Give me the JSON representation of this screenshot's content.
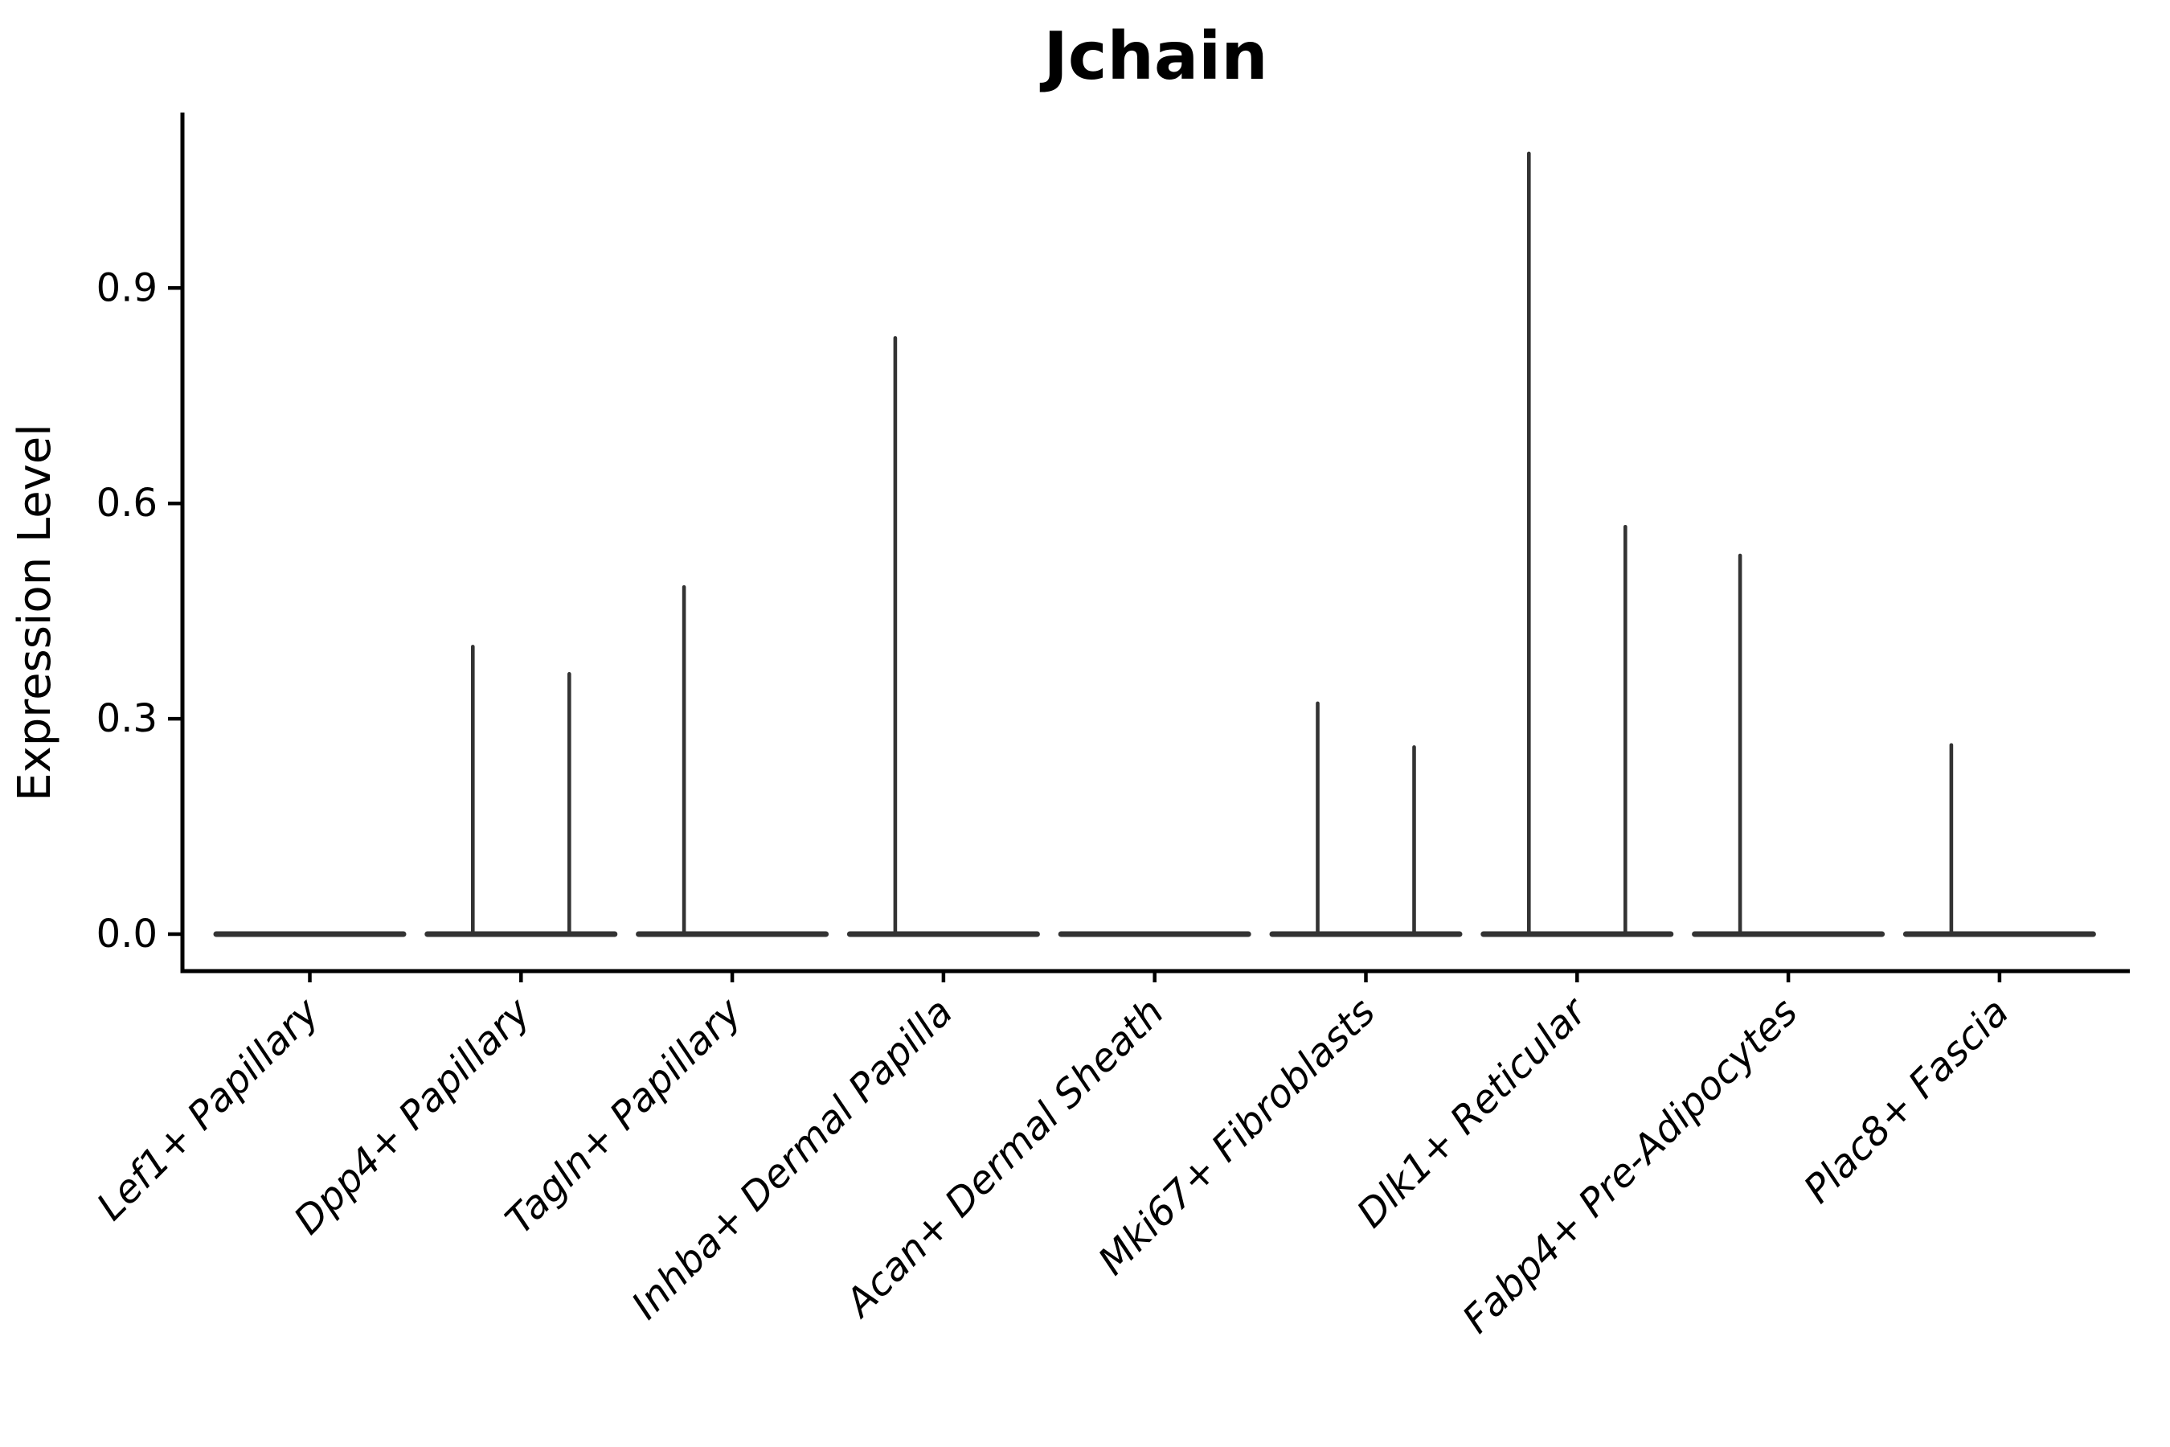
{
  "title": "Jchain",
  "chart_data": {
    "type": "violin",
    "title": "Jchain",
    "ylabel": "Expression Level",
    "xlabel": "",
    "grid": false,
    "legend": "none",
    "violin_color": "#333333",
    "axis_color": "#000000",
    "ylim": [
      -0.052,
      1.144
    ],
    "yticks": [
      {
        "value": 0.0,
        "label": "0.0"
      },
      {
        "value": 0.3,
        "label": "0.3"
      },
      {
        "value": 0.6,
        "label": "0.6"
      },
      {
        "value": 0.9,
        "label": "0.9"
      }
    ],
    "categories": [
      "Lef1+ Papillary",
      "Dpp4+ Papillary",
      "Tagln+ Papillary",
      "Inhba+ Dermal Papilla",
      "Acan+ Dermal Sheath",
      "Mki67+ Fibroblasts",
      "Dlk1+ Reticular",
      "Fabp4+ Pre-Adipocytes",
      "Plac8+ Fascia"
    ],
    "violins": [
      {
        "category": "Lef1+ Papillary",
        "split_max": [
          0,
          0
        ]
      },
      {
        "category": "Dpp4+ Papillary",
        "split_max": [
          0.403,
          0.365
        ]
      },
      {
        "category": "Tagln+ Papillary",
        "split_max": [
          0.486,
          0
        ]
      },
      {
        "category": "Inhba+ Dermal Papilla",
        "split_max": [
          0.833,
          0
        ]
      },
      {
        "category": "Acan+ Dermal Sheath",
        "split_max": [
          0,
          0
        ]
      },
      {
        "category": "Mki67+ Fibroblasts",
        "split_max": [
          0.324,
          0.263
        ]
      },
      {
        "category": "Dlk1+ Reticular",
        "split_max": [
          1.09,
          0.57
        ]
      },
      {
        "category": "Fabp4+ Pre-Adipocytes",
        "split_max": [
          0.53,
          0
        ]
      },
      {
        "category": "Plac8+ Fascia",
        "split_max": [
          0.266,
          0
        ]
      }
    ]
  }
}
